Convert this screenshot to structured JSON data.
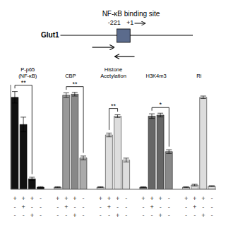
{
  "chart_data": {
    "type": "bar",
    "title": "NF-κB binding site",
    "annotations": [
      "-221",
      "+1",
      "Glut1"
    ],
    "ylim": [
      0,
      1
    ],
    "tick_labels": false,
    "grid": false,
    "groups": [
      {
        "label": "P-p65\n(NF-κB)",
        "values": [
          0.88,
          0.62,
          0.1,
          0.02
        ],
        "errors": [
          0.055,
          0.07,
          0.015,
          0.005
        ],
        "colors": [
          "#111111",
          "#111111",
          "#111111",
          "#111111"
        ],
        "significance": {
          "label": "**",
          "bars": [
            0,
            2
          ]
        }
      },
      {
        "label": "CBP",
        "values": [
          0.02,
          0.9,
          0.91,
          0.3
        ],
        "errors": [
          0.004,
          0.022,
          0.018,
          0.018
        ],
        "colors": [
          "#bbbbbb",
          "#999999",
          "#888888",
          "#aaaaaa"
        ],
        "significance": {
          "label": "**",
          "bars": [
            1,
            3
          ]
        }
      },
      {
        "label": "Histone\nAcetylation",
        "values": [
          0.02,
          0.52,
          0.7,
          0.28
        ],
        "errors": [
          0.004,
          0.018,
          0.013,
          0.018
        ],
        "colors": [
          "#dddddd",
          "#dddddd",
          "#dddddd",
          "#dddddd"
        ],
        "significance": {
          "label": "**",
          "bars": [
            1,
            2
          ]
        }
      },
      {
        "label": "H3K4m3",
        "values": [
          0.02,
          0.7,
          0.71,
          0.36
        ],
        "errors": [
          0.004,
          0.022,
          0.018,
          0.018
        ],
        "colors": [
          "#777777",
          "#666666",
          "#666666",
          "#888888"
        ],
        "significance": {
          "label": "*",
          "bars": [
            1,
            3
          ]
        }
      },
      {
        "label": "Ri",
        "values": [
          0.02,
          0.04,
          0.88,
          0.03
        ],
        "errors": [
          0.004,
          0.008,
          0.012,
          0.004
        ],
        "colors": [
          "#dddddd",
          "#dddddd",
          "#dddddd",
          "#dddddd"
        ]
      }
    ],
    "label_rows": [
      [
        "+",
        "+",
        "+",
        "-",
        "+",
        "+",
        "+",
        "-",
        "+",
        "+",
        "+",
        "-",
        "+",
        "+",
        "+",
        "-",
        "+",
        "+",
        "+",
        "-"
      ],
      [
        "-",
        "+",
        "-",
        "-",
        "-",
        "+",
        "-",
        "-",
        "-",
        "+",
        "-",
        "-",
        "-",
        "+",
        "-",
        "-",
        "-",
        "+",
        "-",
        "-"
      ],
      [
        "-",
        "-",
        "+",
        "-",
        "-",
        "-",
        "+",
        "-",
        "-",
        "-",
        "+",
        "-",
        "-",
        "-",
        "+",
        "-",
        "-",
        "-",
        "+",
        "-"
      ]
    ]
  }
}
